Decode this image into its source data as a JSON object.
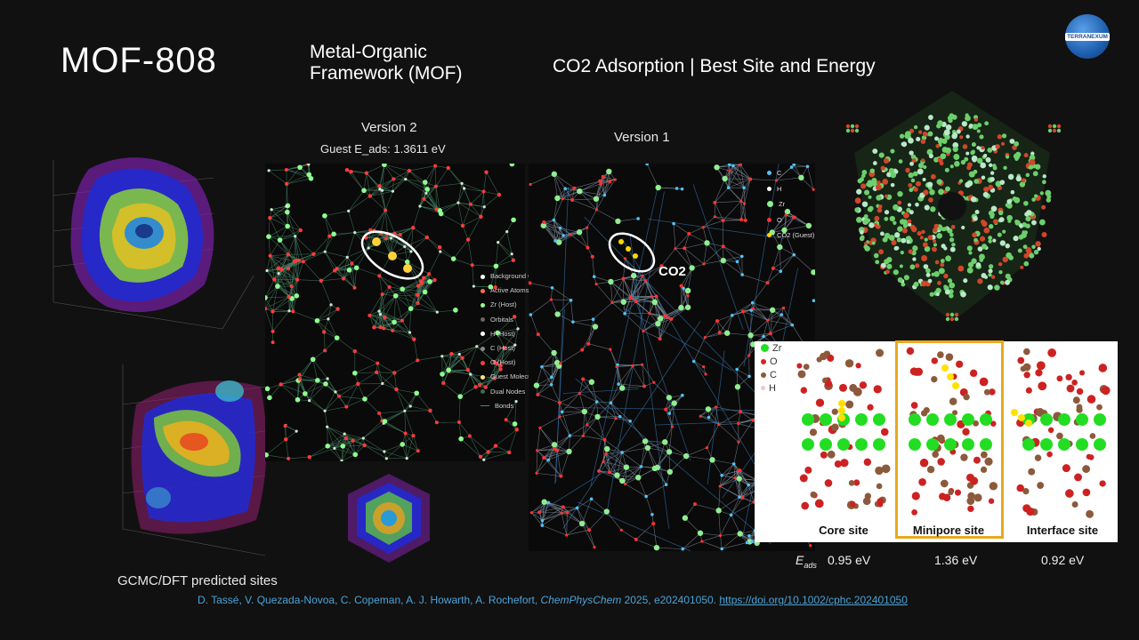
{
  "header": {
    "title": "MOF-808",
    "subtitle_line1": "Metal-Organic",
    "subtitle_line2": "Framework (MOF)",
    "heading": "CO2 Adsorption | Best Site and Energy",
    "logo_text": "TERRANEXUM"
  },
  "v2": {
    "label": "Version 2",
    "energy": "Guest E_ads: 1.3611 eV",
    "legend": [
      {
        "label": "Background Orchard",
        "color": "#ffffff"
      },
      {
        "label": "Active Atoms",
        "color": "#ff6b4a"
      },
      {
        "label": "Zr (Host)",
        "color": "#8fff8f"
      },
      {
        "label": "Orbitals",
        "color": "#666666"
      },
      {
        "label": "H (Host)",
        "color": "#ffffff"
      },
      {
        "label": "C (Host)",
        "color": "#8a8a8a"
      },
      {
        "label": "O (Host)",
        "color": "#ff3b3b"
      },
      {
        "label": "Guest Molecule",
        "color": "#ffe680"
      },
      {
        "label": "Dual Nodes",
        "color": "#3a6b4a"
      },
      {
        "label": "Bonds",
        "color": "#4a8a6a"
      }
    ]
  },
  "v1": {
    "label": "Version 1",
    "co2_label": "CO2",
    "legend": [
      {
        "label": "C",
        "color": "#4fc3f7"
      },
      {
        "label": "H",
        "color": "#ffffff"
      },
      {
        "label": "Zr",
        "color": "#90ee90"
      },
      {
        "label": "O",
        "color": "#ff3333"
      },
      {
        "label": "CO2 (Guest)",
        "color": "#ffd700"
      }
    ]
  },
  "gcmc_label": "GCMC/DFT predicted sites",
  "sites": {
    "legend": [
      {
        "label": "Zr",
        "color": "#22dd22"
      },
      {
        "label": "O",
        "color": "#dd2222"
      },
      {
        "label": "C",
        "color": "#8b5a3c"
      },
      {
        "label": "H",
        "color": "#f0c8c8"
      }
    ],
    "items": [
      {
        "name": "Core site",
        "energy": "0.95 eV"
      },
      {
        "name": "Minipore site",
        "energy": "1.36 eV"
      },
      {
        "name": "Interface site",
        "energy": "0.92 eV"
      }
    ],
    "eads_symbol": "E",
    "eads_sub": "ads"
  },
  "citation": {
    "authors": "D. Tassé, V. Quezada-Novoa, C. Copeman, A. J. Howarth, A. Rochefort,",
    "journal": "ChemPhysChem",
    "rest": " 2025, e202401050.",
    "doi": "https://doi.org/10.1002/cphc.202401050"
  }
}
